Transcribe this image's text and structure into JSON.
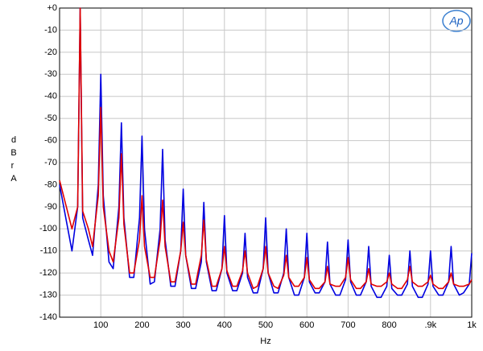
{
  "chart_data": {
    "type": "line",
    "logo_text": "Ap",
    "xlabel": "Hz",
    "ylabel": "dBr A",
    "x": [
      0,
      30,
      44,
      50,
      56,
      70,
      80,
      94,
      100,
      106,
      120,
      130,
      144,
      150,
      156,
      170,
      180,
      194,
      200,
      206,
      220,
      230,
      244,
      250,
      256,
      270,
      280,
      294,
      300,
      306,
      320,
      330,
      344,
      350,
      356,
      370,
      380,
      394,
      400,
      406,
      420,
      430,
      444,
      450,
      456,
      470,
      480,
      494,
      500,
      506,
      520,
      530,
      544,
      550,
      556,
      570,
      580,
      594,
      600,
      606,
      620,
      630,
      644,
      650,
      656,
      670,
      680,
      694,
      700,
      706,
      720,
      730,
      744,
      750,
      756,
      770,
      780,
      794,
      800,
      806,
      820,
      830,
      844,
      850,
      856,
      870,
      880,
      894,
      900,
      906,
      920,
      930,
      944,
      950,
      956,
      970,
      980,
      994,
      1000
    ],
    "series": [
      {
        "color": "#0000e0",
        "values": [
          -80,
          -110,
          -90,
          0,
          -95,
          -105,
          -112,
          -80,
          -30,
          -85,
          -115,
          -118,
          -90,
          -52,
          -95,
          -122,
          -122,
          -95,
          -58,
          -100,
          -125,
          -124,
          -100,
          -64,
          -105,
          -126,
          -126,
          -110,
          -82,
          -112,
          -127,
          -127,
          -115,
          -88,
          -115,
          -128,
          -128,
          -118,
          -94,
          -120,
          -128,
          -128,
          -120,
          -102,
          -122,
          -129,
          -129,
          -118,
          -95,
          -120,
          -129,
          -129,
          -120,
          -100,
          -122,
          -130,
          -130,
          -122,
          -102,
          -124,
          -129,
          -129,
          -124,
          -106,
          -125,
          -130,
          -130,
          -123,
          -105,
          -124,
          -130,
          -130,
          -124,
          -108,
          -126,
          -131,
          -131,
          -126,
          -112,
          -127,
          -130,
          -130,
          -125,
          -110,
          -126,
          -131,
          -131,
          -125,
          -110,
          -126,
          -130,
          -130,
          -124,
          -108,
          -125,
          -130,
          -129,
          -125,
          -111
        ]
      },
      {
        "color": "#e00000",
        "values": [
          -78,
          -100,
          -90,
          0,
          -92,
          -100,
          -108,
          -85,
          -45,
          -90,
          -110,
          -115,
          -95,
          -66,
          -98,
          -120,
          -120,
          -105,
          -85,
          -108,
          -122,
          -122,
          -105,
          -87,
          -108,
          -124,
          -124,
          -110,
          -97,
          -112,
          -125,
          -125,
          -112,
          -96,
          -114,
          -126,
          -126,
          -118,
          -108,
          -119,
          -126,
          -126,
          -119,
          -110,
          -120,
          -127,
          -126,
          -118,
          -108,
          -120,
          -126,
          -127,
          -121,
          -112,
          -122,
          -126,
          -126,
          -122,
          -113,
          -123,
          -127,
          -127,
          -124,
          -117,
          -125,
          -126,
          -126,
          -122,
          -113,
          -123,
          -127,
          -127,
          -124,
          -118,
          -125,
          -126,
          -126,
          -124,
          -120,
          -125,
          -127,
          -127,
          -123,
          -117,
          -124,
          -126,
          -126,
          -124,
          -121,
          -125,
          -127,
          -127,
          -124,
          -120,
          -125,
          -126,
          -126,
          -125,
          -123
        ]
      }
    ],
    "xlim": [
      0,
      1000
    ],
    "xticks": [
      100,
      200,
      300,
      400,
      500,
      600,
      700,
      800,
      {
        "value": 900,
        "label": ".9k"
      },
      {
        "value": 1000,
        "label": "1k"
      }
    ],
    "ylim": [
      -140,
      0
    ],
    "yticks": [
      {
        "value": 0,
        "label": "+0"
      },
      -10,
      -20,
      -30,
      -40,
      -50,
      -60,
      -70,
      -80,
      -90,
      -100,
      -110,
      -120,
      -130,
      -140
    ],
    "grid": true
  }
}
